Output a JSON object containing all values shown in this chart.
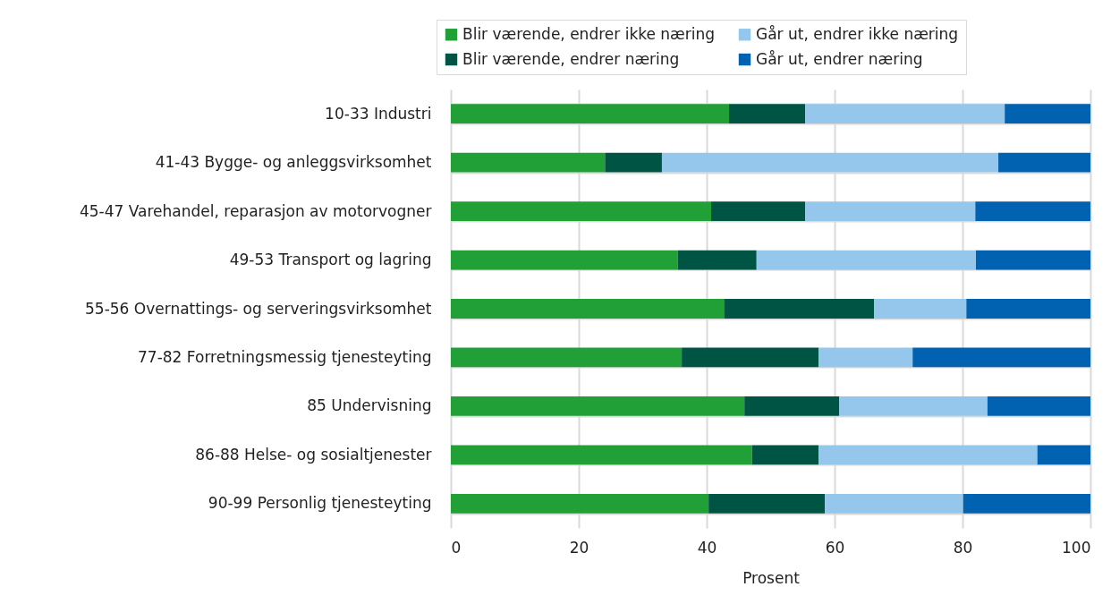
{
  "chart_data": {
    "type": "bar",
    "orientation": "horizontal",
    "stacked": true,
    "xlabel": "Prosent",
    "xlim": [
      0,
      100
    ],
    "xticks": [
      0,
      20,
      40,
      60,
      80,
      100
    ],
    "grid": true,
    "legend": "top",
    "categories": [
      "10-33 Industri",
      "41-43 Bygge- og anleggsvirksomhet",
      "45-47 Varehandel, reparasjon av motorvogner",
      "49-53 Transport og lagring",
      "55-56 Overnattings- og serveringsvirksomhet",
      "77-82 Forretningsmessig tjenesteyting",
      "85 Undervisning",
      "86-88 Helse- og sosialtjenester",
      "90-99 Personlig tjenesteyting"
    ],
    "series": [
      {
        "name": "Blir værende, endrer ikke næring",
        "color": "#21a038",
        "values": [
          43.5,
          24.1,
          40.7,
          35.5,
          42.7,
          36.1,
          45.9,
          47.1,
          40.3
        ]
      },
      {
        "name": "Blir værende, endrer næring",
        "color": "#005443",
        "values": [
          11.9,
          8.9,
          14.7,
          12.3,
          23.5,
          21.4,
          14.8,
          10.4,
          18.2
        ]
      },
      {
        "name": "Går ut, endrer ikke næring",
        "color": "#95c7ec",
        "values": [
          31.2,
          52.6,
          26.6,
          34.3,
          14.4,
          14.7,
          23.2,
          34.2,
          21.6
        ]
      },
      {
        "name": "Går ut, endrer næring",
        "color": "#0062b0",
        "values": [
          13.4,
          14.4,
          18.0,
          17.9,
          19.4,
          27.8,
          16.1,
          8.3,
          19.9
        ]
      }
    ]
  }
}
